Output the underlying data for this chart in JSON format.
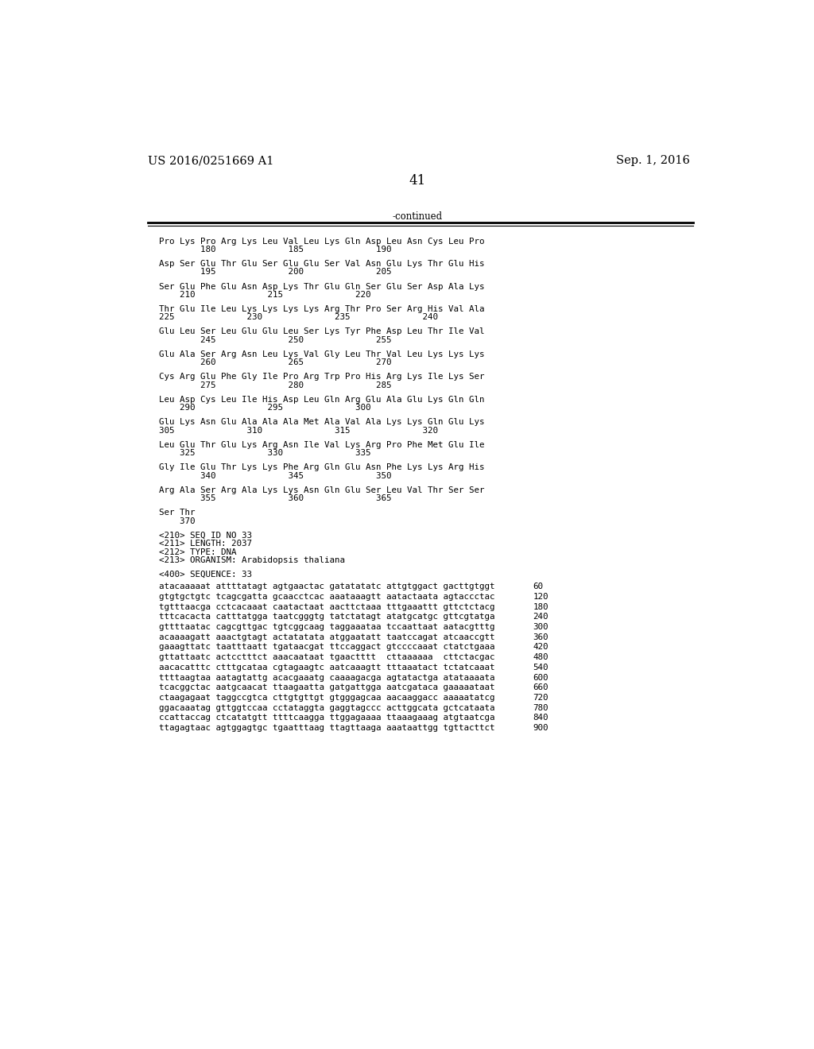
{
  "background_color": "#ffffff",
  "header_left": "US 2016/0251669 A1",
  "header_right": "Sep. 1, 2016",
  "page_number": "41",
  "continued_text": "-continued",
  "header_font_size": 10.5,
  "page_num_font_size": 12,
  "mono_font_size": 7.8,
  "body_font_size": 8.5,
  "amino_acid_lines": [
    "Pro Lys Pro Arg Lys Leu Val Leu Lys Gln Asp Leu Asn Cys Leu Pro",
    "        180              185              190",
    "",
    "Asp Ser Glu Thr Glu Ser Glu Glu Ser Val Asn Glu Lys Thr Glu His",
    "        195              200              205",
    "",
    "Ser Glu Phe Glu Asn Asp Lys Thr Glu Gln Ser Glu Ser Asp Ala Lys",
    "    210              215              220",
    "",
    "Thr Glu Ile Leu Lys Lys Lys Lys Arg Thr Pro Ser Arg His Val Ala",
    "225              230              235              240",
    "",
    "Glu Leu Ser Leu Glu Glu Leu Ser Lys Tyr Phe Asp Leu Thr Ile Val",
    "        245              250              255",
    "",
    "Glu Ala Ser Arg Asn Leu Lys Val Gly Leu Thr Val Leu Lys Lys Lys",
    "        260              265              270",
    "",
    "Cys Arg Glu Phe Gly Ile Pro Arg Trp Pro His Arg Lys Ile Lys Ser",
    "        275              280              285",
    "",
    "Leu Asp Cys Leu Ile His Asp Leu Gln Arg Glu Ala Glu Lys Gln Gln",
    "    290              295              300",
    "",
    "Glu Lys Asn Glu Ala Ala Ala Met Ala Val Ala Lys Lys Gln Glu Lys",
    "305              310              315              320",
    "",
    "Leu Glu Thr Glu Lys Arg Asn Ile Val Lys Arg Pro Phe Met Glu Ile",
    "    325              330              335",
    "",
    "Gly Ile Glu Thr Lys Lys Phe Arg Gln Glu Asn Phe Lys Lys Arg His",
    "        340              345              350",
    "",
    "Arg Ala Ser Arg Ala Lys Lys Asn Gln Glu Ser Leu Val Thr Ser Ser",
    "        355              360              365",
    "",
    "Ser Thr",
    "    370"
  ],
  "metadata_lines": [
    "<210> SEQ ID NO 33",
    "<211> LENGTH: 2037",
    "<212> TYPE: DNA",
    "<213> ORGANISM: Arabidopsis thaliana",
    "",
    "<400> SEQUENCE: 33"
  ],
  "sequence_lines": [
    [
      "atacaaaaat attttatagt agtgaactac gatatatatc attgtggact gacttgtggt",
      "60"
    ],
    [
      "gtgtgctgtc tcagcgatta gcaacctcac aaataaagtt aatactaata agtaccctac",
      "120"
    ],
    [
      "tgtttaacga cctcacaaat caatactaat aacttctaaa tttgaaattt gttctctacg",
      "180"
    ],
    [
      "tttcacacta catttatgga taatcgggtg tatctatagt atatgcatgc gttcgtatga",
      "240"
    ],
    [
      "gttttaatac cagcgttgac tgtcggcaag taggaaataa tccaattaat aatacgtttg",
      "300"
    ],
    [
      "acaaaagatt aaactgtagt actatatata atggaatatt taatccagat atcaaccgtt",
      "360"
    ],
    [
      "gaaagttatc taatttaatt tgataacgat ttccaggact gtccccaaat ctatctgaaa",
      "420"
    ],
    [
      "gttattaatc actcctttct aaacaataat tgaactttt  cttaaaaaa  cttctacgac",
      "480"
    ],
    [
      "aacacatttc ctttgcataa cgtagaagtc aatcaaagtt tttaaatact tctatcaaat",
      "540"
    ],
    [
      "ttttaagtaa aatagtattg acacgaaatg caaaagacga agtatactga atataaaata",
      "600"
    ],
    [
      "tcacggctac aatgcaacat ttaagaatta gatgattgga aatcgataca gaaaaataat",
      "660"
    ],
    [
      "ctaagagaat taggccgtca cttgtgttgt gtgggagcaa aacaaggacc aaaaatatcg",
      "720"
    ],
    [
      "ggacaaatag gttggtccaa cctataggta gaggtagccc acttggcata gctcataata",
      "780"
    ],
    [
      "ccattaccag ctcatatgtt ttttcaagga ttggagaaaa ttaaagaaag atgtaatcga",
      "840"
    ],
    [
      "ttagagtaac agtggagtgc tgaatttaag ttagttaaga aaataattgg tgttacttct",
      "900"
    ]
  ]
}
